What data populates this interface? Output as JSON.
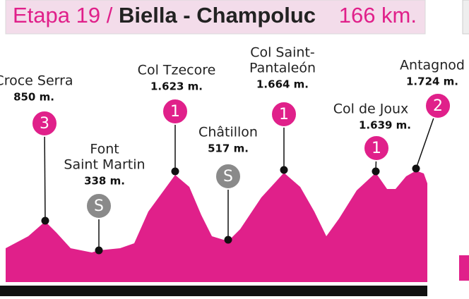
{
  "header": {
    "stage": "Etapa 19",
    "separator": "/",
    "route": "Biella - Champoluc",
    "distance": "166 km."
  },
  "points": [
    {
      "name_lines": [
        "Croce Serra"
      ],
      "elevation": "850 m.",
      "badge": "3"
    },
    {
      "name_lines": [
        "Font",
        "Saint Martin"
      ],
      "elevation": "338 m.",
      "badge": "S"
    },
    {
      "name_lines": [
        "Col Tzecore"
      ],
      "elevation": "1.623 m.",
      "badge": "1"
    },
    {
      "name_lines": [
        "Châtillon"
      ],
      "elevation": "517 m.",
      "badge": "S"
    },
    {
      "name_lines": [
        "Col Saint-",
        "Pantaleón"
      ],
      "elevation": "1.664 m.",
      "badge": "1"
    },
    {
      "name_lines": [
        "Col de Joux"
      ],
      "elevation": "1.639 m.",
      "badge": "1"
    },
    {
      "name_lines": [
        "Antagnod"
      ],
      "elevation": "1.724 m.",
      "badge": "2"
    }
  ]
}
